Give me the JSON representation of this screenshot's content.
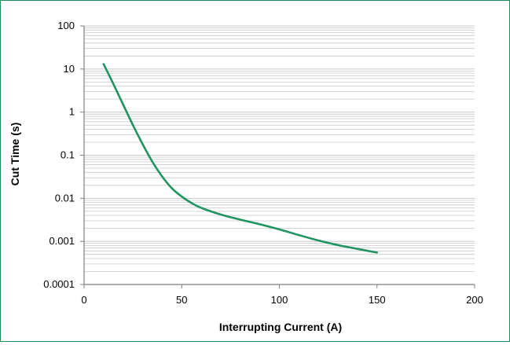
{
  "colors": {
    "frame_border": "#1e8f5a",
    "curve": "#1f9460",
    "grid": "#c8c8c8",
    "axis": "#808080"
  },
  "chart_data": {
    "type": "line",
    "title": "",
    "xlabel": "Interrupting Current (A)",
    "ylabel": "Cut Time (s)",
    "x_scale": "linear",
    "y_scale": "log",
    "xlim": [
      0,
      200
    ],
    "ylim": [
      0.0001,
      100
    ],
    "x_ticks": [
      "0",
      "50",
      "100",
      "150",
      "200"
    ],
    "y_ticks": [
      "0.0001",
      "0.001",
      "0.01",
      "0.1",
      "1",
      "10",
      "100"
    ],
    "grid": "horizontal, major and minor (log decades)",
    "legend": "none",
    "series": [
      {
        "x": [
          10,
          15,
          20,
          25,
          30,
          35,
          40,
          45,
          50,
          55,
          60,
          70,
          80,
          90,
          100,
          110,
          120,
          130,
          140,
          150
        ],
        "values": [
          13,
          4.5,
          1.5,
          0.5,
          0.18,
          0.07,
          0.032,
          0.017,
          0.011,
          0.0078,
          0.006,
          0.0042,
          0.0032,
          0.0025,
          0.0019,
          0.0014,
          0.00105,
          0.00082,
          0.00067,
          0.00055
        ]
      }
    ]
  }
}
